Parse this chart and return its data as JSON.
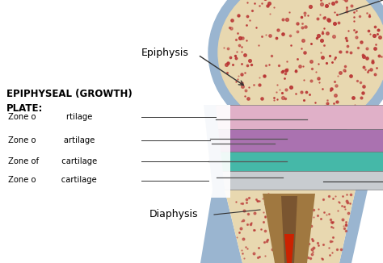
{
  "bg_color": "#ffffff",
  "title_text": "EPIPHYSEAL (GROWTH)\nPLATE:",
  "epiphysis_label": "Epiphysis",
  "diaphysis_label": "Diaphysis",
  "zone_labels": [
    "Zone o            rtilage",
    "Zone o           artilage",
    "Zone of         cartilage",
    "Zone o          cartilage"
  ],
  "zone_colors": [
    "#e0b0c8",
    "#aa72b0",
    "#45b8a8",
    "#c8ccd0"
  ],
  "bone_epi_color": "#e8d8b0",
  "bone_spots_color": "#b83030",
  "bone_outer_color": "#9ab5d0",
  "bone_shaft_color": "#dcc898",
  "bone_shaft_spots": "#c8a870",
  "medulla_dark": "#a07840",
  "medulla_stripe": "#7a5530",
  "red_accent": "#cc2200",
  "line_color": "#333333",
  "text_color": "#000000"
}
